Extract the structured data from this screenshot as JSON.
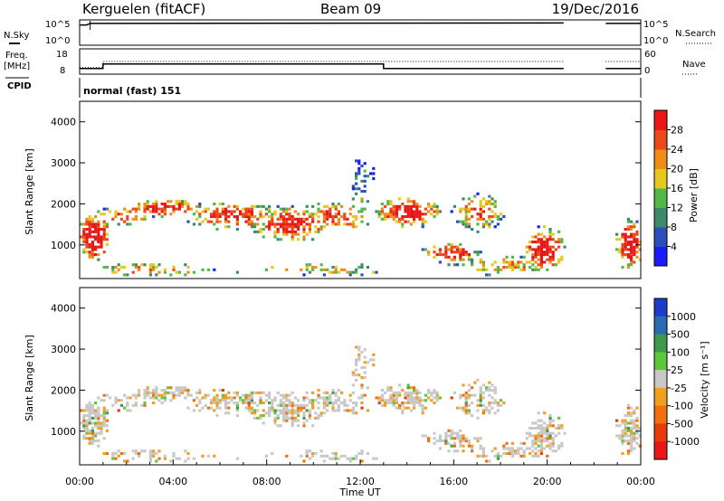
{
  "header": {
    "station": "Kerguelen (fitACF)",
    "beam": "Beam 09",
    "date": "19/Dec/2016"
  },
  "chart_data": [
    {
      "type": "line",
      "panel": "nsky",
      "ylabel": "N.Sky",
      "right_label": "N.Search",
      "left_ticks": [
        "10^5",
        "10^0"
      ],
      "right_ticks": [
        "10^5",
        "10^0"
      ],
      "series": [
        {
          "x": [
            0.0,
            0.3,
            0.45,
            20.7
          ],
          "y": [
            4.0,
            4.0,
            4.3,
            4.4
          ]
        },
        {
          "x": [
            22.5,
            24.0
          ],
          "y": [
            4.3,
            4.3
          ]
        }
      ]
    },
    {
      "type": "line",
      "panel": "frequency",
      "ylabel": "Freq. [MHz]",
      "right_label": "Nave",
      "left_ticks": [
        "18",
        "8"
      ],
      "right_ticks": [
        "60",
        "0"
      ],
      "ylim": [
        8,
        18
      ],
      "series": [
        {
          "x": [
            0.0,
            1.0,
            1.0,
            13.0,
            13.0,
            20.7
          ],
          "y": [
            10.2,
            10.2,
            12.0,
            12.0,
            10.2,
            10.2
          ]
        },
        {
          "x": [
            22.5,
            24.0
          ],
          "y": [
            10.2,
            10.2
          ]
        },
        {
          "x": [
            0.0,
            1.0,
            1.0,
            20.7
          ],
          "y": [
            10.6,
            10.6,
            13.0,
            13.0
          ]
        },
        {
          "x": [
            22.5,
            24.0
          ],
          "y": [
            13.0,
            13.0
          ]
        }
      ]
    },
    {
      "type": "heatmap",
      "panel": "cpid",
      "label": "CPID",
      "mode_text": "normal (fast) 151"
    },
    {
      "type": "heatmap",
      "panel": "power",
      "ylabel": "Slant Range [km]",
      "ylim": [
        180,
        4500
      ],
      "yticks": [
        1000,
        2000,
        3000,
        4000
      ],
      "colorbar": {
        "label": "Power [dB]",
        "ticks": [
          "4",
          "8",
          "12",
          "16",
          "20",
          "24",
          "28"
        ],
        "colors": [
          "#1b1bff",
          "#2b4fb8",
          "#3d8a6a",
          "#52b84a",
          "#e7c81e",
          "#f08c1a",
          "#e84a1a",
          "#e81818"
        ]
      }
    },
    {
      "type": "heatmap",
      "panel": "velocity",
      "ylabel": "Slant Range [km]",
      "xlabel": "Time UT",
      "ylim": [
        180,
        4500
      ],
      "yticks": [
        1000,
        2000,
        3000,
        4000
      ],
      "xticks": [
        "00:00",
        "04:00",
        "08:00",
        "12:00",
        "16:00",
        "20:00",
        "00:00"
      ],
      "colorbar": {
        "label": "Velocity [m s⁻¹]",
        "ticks": [
          "1000",
          "500",
          "100",
          "25",
          "-25",
          "-100",
          "-500",
          "-1000"
        ],
        "colors": [
          "#1e3cc8",
          "#2a6ab0",
          "#3d9a4a",
          "#5ac83a",
          "#c8c8c8",
          "#f0a020",
          "#f07010",
          "#e83a10",
          "#e81818"
        ]
      }
    }
  ]
}
